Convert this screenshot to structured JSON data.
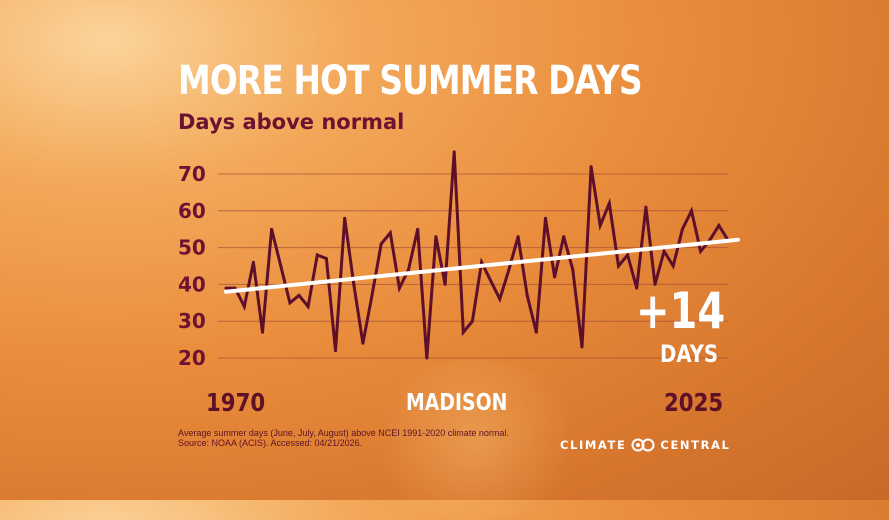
{
  "title": "MORE HOT SUMMER DAYS",
  "subtitle": "Days above normal",
  "location": "MADISON",
  "change": {
    "value": "+14",
    "unit": "DAYS"
  },
  "footnote": {
    "line1": "Average summer days (June, July, August) above NCEI 1991-2020 climate normal.",
    "line2": "Source: NOAA (ACIS). Accessed: 04/21/2026."
  },
  "brand": {
    "word1": "CLIMATE",
    "word2": "CENTRAL",
    "logo_icon": "climate-central-logo-icon"
  },
  "colors": {
    "data_line": "#5e0f2a",
    "trend_line": "#ffffff",
    "accent_text": "#6d1230",
    "background_top": "#f3a95a",
    "background_bottom": "#d6752c"
  },
  "chart_data": {
    "type": "line",
    "title": "MORE HOT SUMMER DAYS",
    "subtitle": "Days above normal",
    "xlabel": "",
    "ylabel": "",
    "x_tick_labels": [
      "1970",
      "2025"
    ],
    "xlim": [
      1970,
      2025
    ],
    "ylim": [
      20,
      70
    ],
    "y_ticks": [
      20,
      30,
      40,
      50,
      60,
      70
    ],
    "grid": true,
    "series": [
      {
        "x": [
          1970,
          1971,
          1972,
          1973,
          1974,
          1975,
          1976,
          1977,
          1978,
          1979,
          1980,
          1981,
          1982,
          1983,
          1984,
          1985,
          1986,
          1987,
          1988,
          1989,
          1990,
          1991,
          1992,
          1993,
          1994,
          1995,
          1996,
          1997,
          1998,
          1999,
          2000,
          2001,
          2002,
          2003,
          2004,
          2005,
          2006,
          2007,
          2008,
          2009,
          2010,
          2011,
          2012,
          2013,
          2014,
          2015,
          2016,
          2017,
          2018,
          2019,
          2020,
          2021,
          2022,
          2023,
          2024,
          2025
        ],
        "y": [
          39,
          39,
          34,
          46,
          27,
          55,
          45,
          35,
          37,
          34,
          48,
          47,
          22,
          58,
          40,
          24,
          37,
          51,
          54,
          39,
          44,
          55,
          20,
          53,
          40,
          76,
          27,
          30,
          46,
          41,
          36,
          44,
          53,
          37,
          27,
          58,
          42,
          53,
          44,
          23,
          72,
          56,
          62,
          45,
          48,
          39,
          61,
          40,
          49,
          45,
          55,
          60,
          49,
          52,
          56,
          52
        ]
      }
    ],
    "trend": {
      "type": "linear",
      "start": {
        "x": 1970,
        "y": 38
      },
      "end": {
        "x": 2025,
        "y": 52
      }
    }
  }
}
